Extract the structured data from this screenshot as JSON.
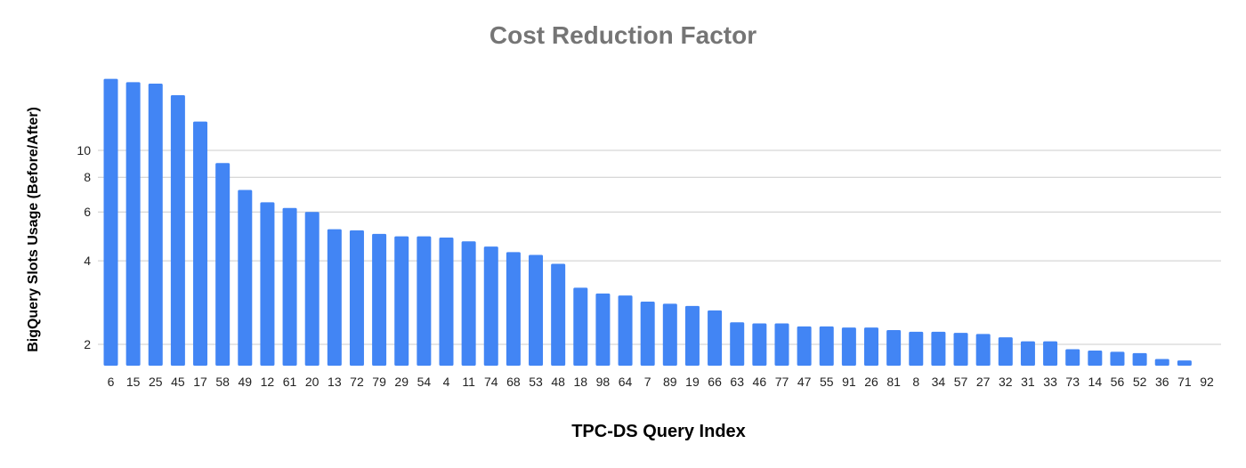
{
  "chart_data": {
    "type": "bar",
    "title": "Cost Reduction Factor",
    "xlabel": "TPC-DS Query Index",
    "ylabel": "BigQuery Slots Usage (Before/After)",
    "y_scale": "log",
    "y_ticks": [
      2,
      4,
      6,
      8,
      10
    ],
    "ylim": [
      1.7,
      19
    ],
    "grid": true,
    "legend": "none",
    "bar_color": "#4285f4",
    "categories": [
      "6",
      "15",
      "25",
      "45",
      "17",
      "58",
      "49",
      "12",
      "61",
      "20",
      "13",
      "72",
      "79",
      "29",
      "54",
      "4",
      "11",
      "74",
      "68",
      "53",
      "48",
      "18",
      "98",
      "64",
      "7",
      "89",
      "19",
      "66",
      "63",
      "46",
      "77",
      "47",
      "55",
      "91",
      "26",
      "81",
      "8",
      "34",
      "57",
      "27",
      "32",
      "31",
      "33",
      "73",
      "14",
      "56",
      "52",
      "36",
      "71",
      "92"
    ],
    "values": [
      18.1,
      17.6,
      17.4,
      15.8,
      12.7,
      9.0,
      7.2,
      6.5,
      6.2,
      6.0,
      5.2,
      5.15,
      5.0,
      4.9,
      4.9,
      4.85,
      4.7,
      4.5,
      4.3,
      4.2,
      3.9,
      3.2,
      3.05,
      3.0,
      2.85,
      2.8,
      2.75,
      2.65,
      2.4,
      2.38,
      2.38,
      2.32,
      2.32,
      2.3,
      2.3,
      2.25,
      2.22,
      2.22,
      2.2,
      2.18,
      2.12,
      2.05,
      2.05,
      1.92,
      1.9,
      1.88,
      1.86,
      1.77,
      1.75,
      0
    ]
  }
}
